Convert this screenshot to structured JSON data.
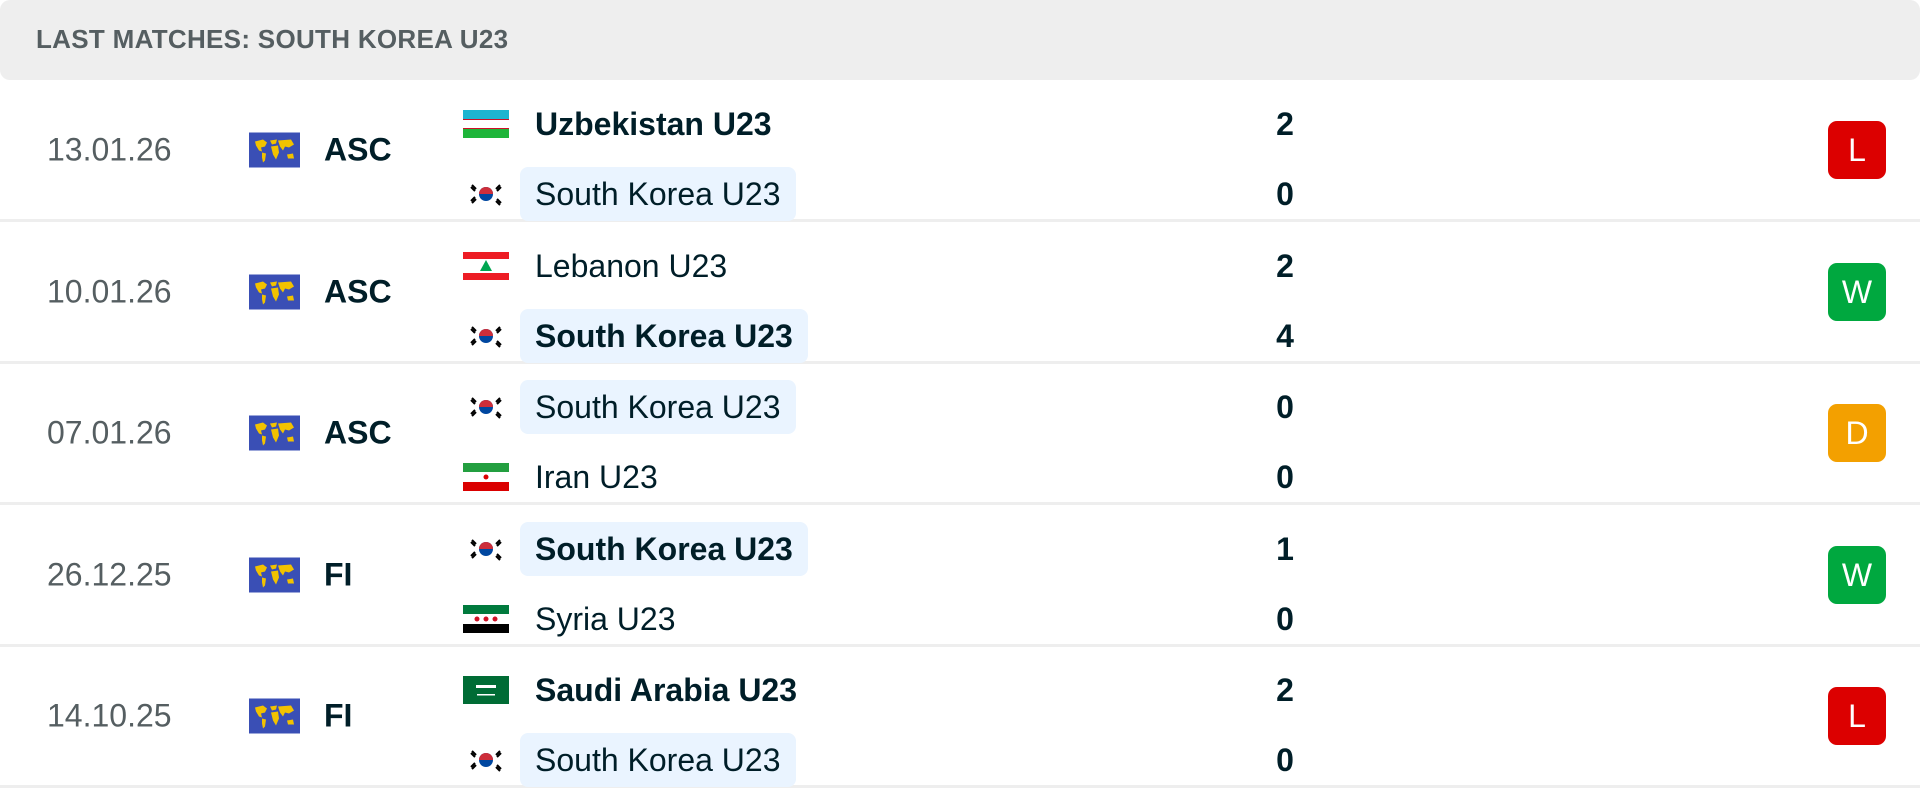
{
  "header": {
    "title": "LAST MATCHES: SOUTH KOREA U23"
  },
  "colors": {
    "L": "#dc0000",
    "W": "#00a83f",
    "D": "#f3a000",
    "highlight": "#eaf4ff"
  },
  "matches": [
    {
      "date": "13.01.26",
      "competition": "ASC",
      "home": {
        "name": "Uzbekistan U23",
        "flag": "uzbekistan",
        "score": "2",
        "bold": true,
        "highlight": false
      },
      "away": {
        "name": "South Korea U23",
        "flag": "south-korea",
        "score": "0",
        "bold": false,
        "highlight": true
      },
      "result": "L"
    },
    {
      "date": "10.01.26",
      "competition": "ASC",
      "home": {
        "name": "Lebanon U23",
        "flag": "lebanon",
        "score": "2",
        "bold": false,
        "highlight": false
      },
      "away": {
        "name": "South Korea U23",
        "flag": "south-korea",
        "score": "4",
        "bold": true,
        "highlight": true
      },
      "result": "W"
    },
    {
      "date": "07.01.26",
      "competition": "ASC",
      "home": {
        "name": "South Korea U23",
        "flag": "south-korea",
        "score": "0",
        "bold": false,
        "highlight": true
      },
      "away": {
        "name": "Iran U23",
        "flag": "iran",
        "score": "0",
        "bold": false,
        "highlight": false
      },
      "result": "D"
    },
    {
      "date": "26.12.25",
      "competition": "FI",
      "home": {
        "name": "South Korea U23",
        "flag": "south-korea",
        "score": "1",
        "bold": true,
        "highlight": true
      },
      "away": {
        "name": "Syria U23",
        "flag": "syria",
        "score": "0",
        "bold": false,
        "highlight": false
      },
      "result": "W"
    },
    {
      "date": "14.10.25",
      "competition": "FI",
      "home": {
        "name": "Saudi Arabia U23",
        "flag": "saudi-arabia",
        "score": "2",
        "bold": true,
        "highlight": false
      },
      "away": {
        "name": "South Korea U23",
        "flag": "south-korea",
        "score": "0",
        "bold": false,
        "highlight": true
      },
      "result": "L"
    }
  ]
}
